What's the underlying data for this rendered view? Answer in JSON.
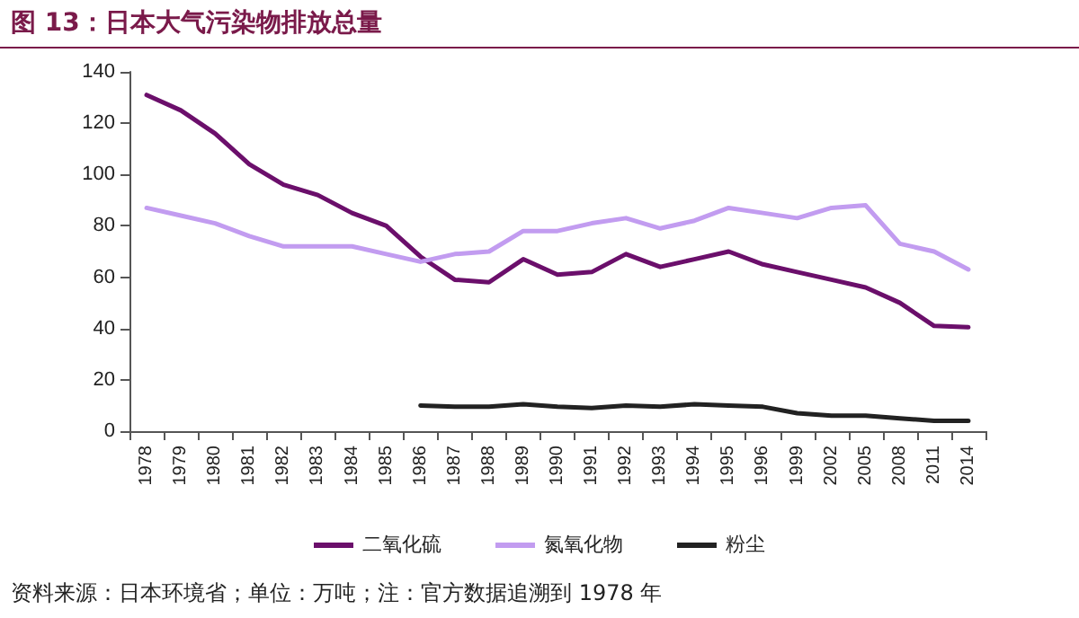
{
  "chart_data": {
    "type": "line",
    "title": "图 13：日本大气污染物排放总量",
    "annotations": [
      "资料来源：日本环境省；单位：万吨；注：官方数据追溯到 1978 年"
    ],
    "categories": [
      "1978",
      "1979",
      "1980",
      "1981",
      "1982",
      "1983",
      "1984",
      "1985",
      "1986",
      "1987",
      "1988",
      "1989",
      "1990",
      "1991",
      "1992",
      "1993",
      "1994",
      "1995",
      "1996",
      "1999",
      "2002",
      "2005",
      "2008",
      "2011",
      "2014"
    ],
    "series": [
      {
        "name": "二氧化硫",
        "color": "#6b0f6b",
        "values": [
          131,
          125,
          116,
          104,
          96,
          92,
          85,
          80,
          68,
          59,
          58,
          67,
          61,
          62,
          69,
          64,
          67,
          70,
          65,
          62,
          59,
          56,
          50,
          41,
          40.5
        ]
      },
      {
        "name": "氮氧化物",
        "color": "#c29cf0",
        "values": [
          87,
          84,
          81,
          76,
          72,
          72,
          72,
          69,
          66,
          69,
          70,
          78,
          78,
          81,
          83,
          79,
          82,
          87,
          85,
          83,
          87,
          88,
          73,
          70,
          63
        ]
      },
      {
        "name": "粉尘",
        "color": "#222222",
        "values": [
          null,
          null,
          null,
          null,
          null,
          null,
          null,
          null,
          10,
          9.5,
          9.5,
          10.5,
          9.5,
          9,
          10,
          9.5,
          10.5,
          10,
          9.5,
          7,
          6,
          6,
          5,
          4,
          4
        ]
      }
    ],
    "ylim": [
      0,
      140
    ],
    "yticks": [
      0,
      20,
      40,
      60,
      80,
      100,
      120,
      140
    ],
    "grid": false,
    "legend": "bottom",
    "marker": "none",
    "line_style": "solid"
  }
}
